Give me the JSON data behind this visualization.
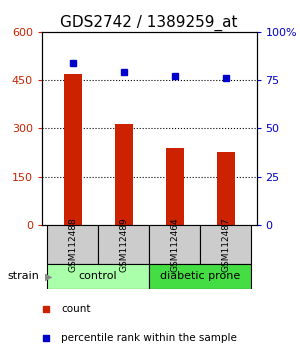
{
  "title": "GDS2742 / 1389259_at",
  "samples": [
    "GSM112488",
    "GSM112489",
    "GSM112464",
    "GSM112487"
  ],
  "counts": [
    470,
    315,
    240,
    225
  ],
  "percentiles": [
    84,
    79,
    77,
    76
  ],
  "ylim_left": [
    0,
    600
  ],
  "ylim_right": [
    0,
    100
  ],
  "yticks_left": [
    0,
    150,
    300,
    450,
    600
  ],
  "yticks_right": [
    0,
    25,
    50,
    75,
    100
  ],
  "yticklabels_right": [
    "0",
    "25",
    "50",
    "75",
    "100%"
  ],
  "hlines": [
    150,
    300,
    450
  ],
  "bar_color": "#cc2200",
  "dot_color": "#0000cc",
  "bar_width": 0.35,
  "groups": [
    {
      "label": "control",
      "indices": [
        0,
        1
      ],
      "color": "#aaffaa"
    },
    {
      "label": "diabetic prone",
      "indices": [
        2,
        3
      ],
      "color": "#44dd44"
    }
  ],
  "strain_label": "strain",
  "legend_count_label": "count",
  "legend_percentile_label": "percentile rank within the sample",
  "sample_box_color": "#cccccc",
  "title_fontsize": 11
}
